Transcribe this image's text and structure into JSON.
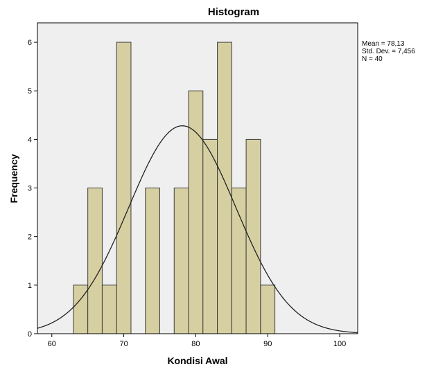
{
  "chart_data": {
    "type": "bar",
    "title": "Histogram",
    "xlabel": "Kondisi Awal",
    "ylabel": "Frequency",
    "xlim": [
      58,
      102.5
    ],
    "ylim": [
      0,
      6.4
    ],
    "xticks": [
      "60",
      "70",
      "80",
      "90",
      "100"
    ],
    "xtick_values": [
      60,
      70,
      80,
      90,
      100
    ],
    "yticks": [
      "0",
      "1",
      "2",
      "3",
      "4",
      "5",
      "6"
    ],
    "ytick_values": [
      0,
      1,
      2,
      3,
      4,
      5,
      6
    ],
    "bin_width": 2,
    "bins": [
      {
        "start": 63,
        "end": 65,
        "count": 1
      },
      {
        "start": 65,
        "end": 67,
        "count": 3
      },
      {
        "start": 67,
        "end": 69,
        "count": 1
      },
      {
        "start": 69,
        "end": 71,
        "count": 6
      },
      {
        "start": 71,
        "end": 73,
        "count": 0
      },
      {
        "start": 73,
        "end": 75,
        "count": 3
      },
      {
        "start": 75,
        "end": 77,
        "count": 0
      },
      {
        "start": 77,
        "end": 79,
        "count": 3
      },
      {
        "start": 79,
        "end": 81,
        "count": 5
      },
      {
        "start": 81,
        "end": 83,
        "count": 4
      },
      {
        "start": 83,
        "end": 85,
        "count": 6
      },
      {
        "start": 85,
        "end": 87,
        "count": 3
      },
      {
        "start": 87,
        "end": 89,
        "count": 4
      },
      {
        "start": 89,
        "end": 91,
        "count": 1
      }
    ],
    "normal_curve": {
      "mean": 78.13,
      "std_dev": 7.456,
      "n": 40
    },
    "stats": {
      "mean": "Mean = 78,13",
      "std_dev": "Std. Dev. = 7,456",
      "n": "N = 40"
    },
    "grid": false,
    "legend_placement": "top-right",
    "colors": {
      "bar_fill": "#d6cfa1",
      "bar_stroke": "#3c3c3c",
      "plot_background": "#efefef",
      "curve": "#222222",
      "axis": "#000000"
    }
  }
}
